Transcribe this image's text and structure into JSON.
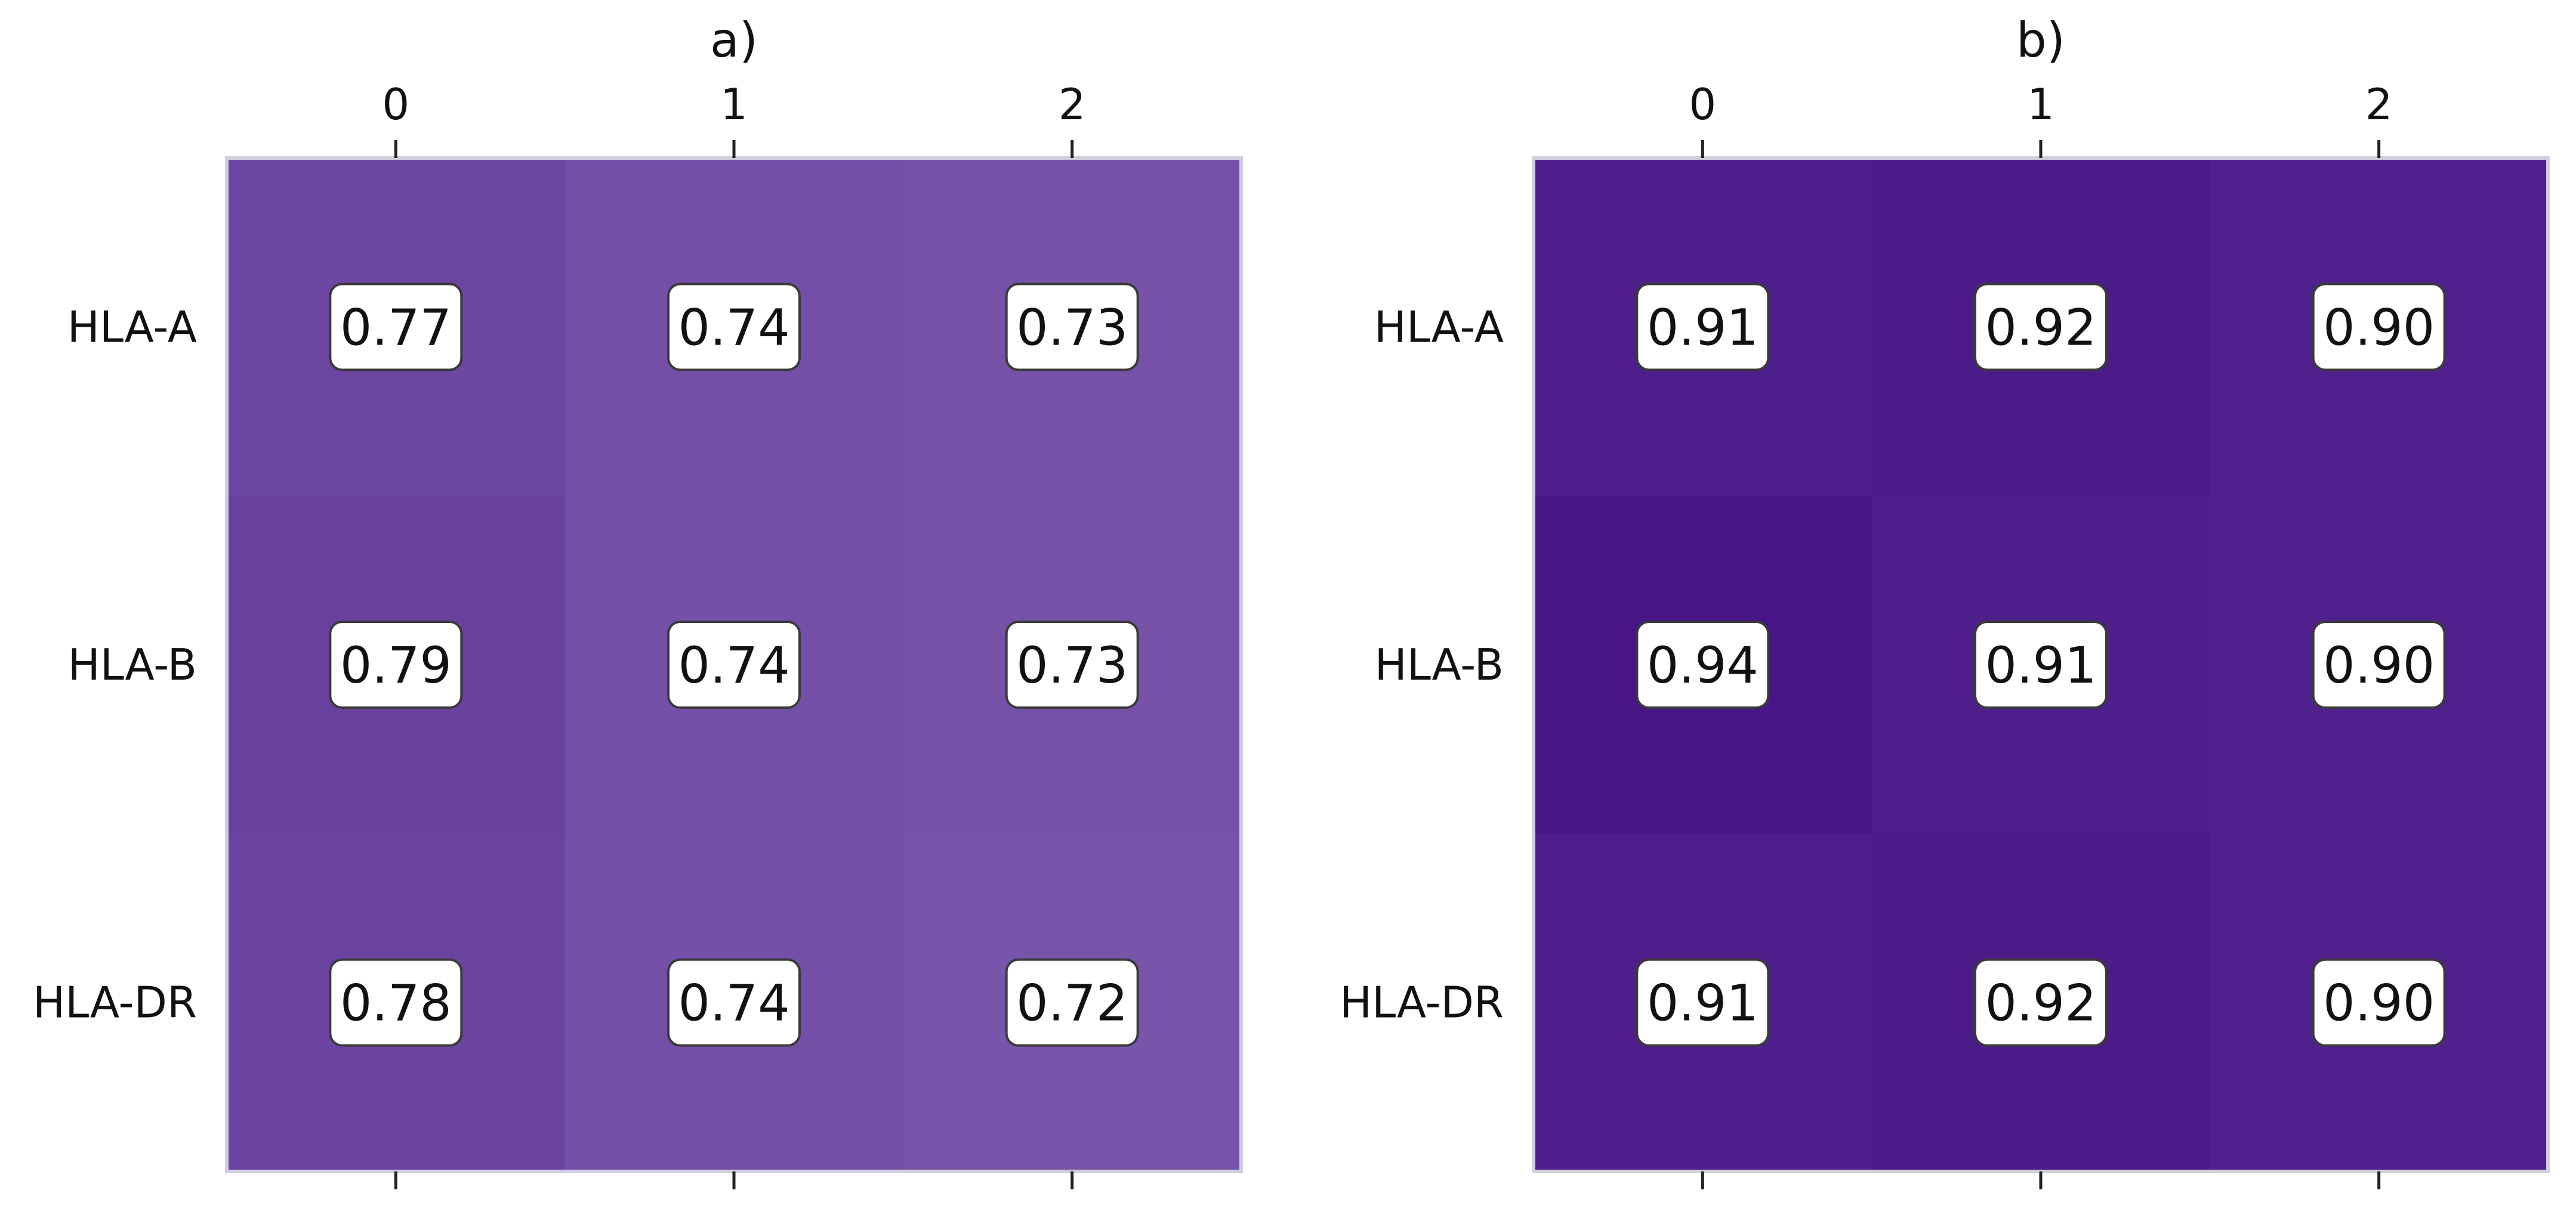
{
  "chart_data": [
    {
      "type": "heatmap",
      "title": "a)",
      "columns": [
        "0",
        "1",
        "2"
      ],
      "rows": [
        "HLA-A",
        "HLA-B",
        "HLA-DR"
      ],
      "values": [
        [
          0.77,
          0.74,
          0.73
        ],
        [
          0.79,
          0.74,
          0.73
        ],
        [
          0.78,
          0.74,
          0.72
        ]
      ],
      "value_labels": [
        [
          "0.77",
          "0.74",
          "0.73"
        ],
        [
          "0.79",
          "0.74",
          "0.73"
        ],
        [
          "0.78",
          "0.74",
          "0.72"
        ]
      ],
      "colormap": "purples",
      "colorbar": false
    },
    {
      "type": "heatmap",
      "title": "b)",
      "columns": [
        "0",
        "1",
        "2"
      ],
      "rows": [
        "HLA-A",
        "HLA-B",
        "HLA-DR"
      ],
      "values": [
        [
          0.91,
          0.92,
          0.9
        ],
        [
          0.94,
          0.91,
          0.9
        ],
        [
          0.91,
          0.92,
          0.9
        ]
      ],
      "value_labels": [
        [
          "0.91",
          "0.92",
          "0.90"
        ],
        [
          "0.94",
          "0.91",
          "0.90"
        ],
        [
          "0.91",
          "0.92",
          "0.90"
        ]
      ],
      "colormap": "purples",
      "colorbar": false
    }
  ]
}
